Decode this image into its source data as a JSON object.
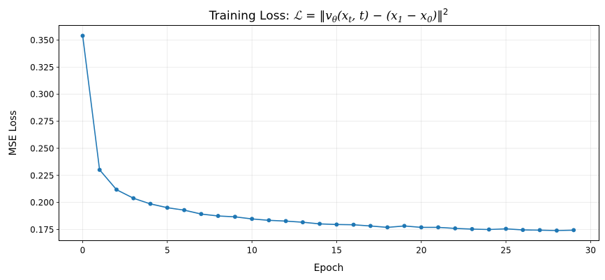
{
  "chart_data": {
    "type": "line",
    "title_segments": [
      {
        "kind": "text",
        "text": "Training Loss: "
      },
      {
        "kind": "math",
        "text": "ℒ = ‖v"
      },
      {
        "kind": "sub",
        "text": "θ"
      },
      {
        "kind": "math",
        "text": "(x"
      },
      {
        "kind": "sub",
        "text": "t"
      },
      {
        "kind": "math",
        "text": ", t) − (x"
      },
      {
        "kind": "sub",
        "text": "1"
      },
      {
        "kind": "math",
        "text": " − x"
      },
      {
        "kind": "sub",
        "text": "0"
      },
      {
        "kind": "math",
        "text": ")‖"
      },
      {
        "kind": "sup",
        "text": "2"
      }
    ],
    "xlabel": "Epoch",
    "ylabel": "MSE Loss",
    "xlim": [
      -1.4,
      30.5
    ],
    "ylim": [
      0.1647,
      0.3635
    ],
    "xticks": [
      0,
      5,
      10,
      15,
      20,
      25,
      30
    ],
    "xtick_labels": [
      "0",
      "5",
      "10",
      "15",
      "20",
      "25",
      "30"
    ],
    "yticks": [
      0.175,
      0.2,
      0.225,
      0.25,
      0.275,
      0.3,
      0.325,
      0.35
    ],
    "ytick_labels": [
      "0.175",
      "0.200",
      "0.225",
      "0.250",
      "0.275",
      "0.300",
      "0.325",
      "0.350"
    ],
    "grid": true,
    "color": "#1f77b4",
    "marker": "circle",
    "x": [
      0,
      1,
      2,
      3,
      4,
      5,
      6,
      7,
      8,
      9,
      10,
      11,
      12,
      13,
      14,
      15,
      16,
      17,
      18,
      19,
      20,
      21,
      22,
      23,
      24,
      25,
      26,
      27,
      28,
      29
    ],
    "y": [
      0.3539,
      0.2301,
      0.2118,
      0.2039,
      0.1987,
      0.1951,
      0.1929,
      0.1893,
      0.1875,
      0.1867,
      0.1848,
      0.1835,
      0.1828,
      0.1817,
      0.1802,
      0.1796,
      0.1794,
      0.1783,
      0.177,
      0.1783,
      0.177,
      0.177,
      0.176,
      0.1754,
      0.175,
      0.1756,
      0.1746,
      0.1744,
      0.174,
      0.1744
    ]
  }
}
